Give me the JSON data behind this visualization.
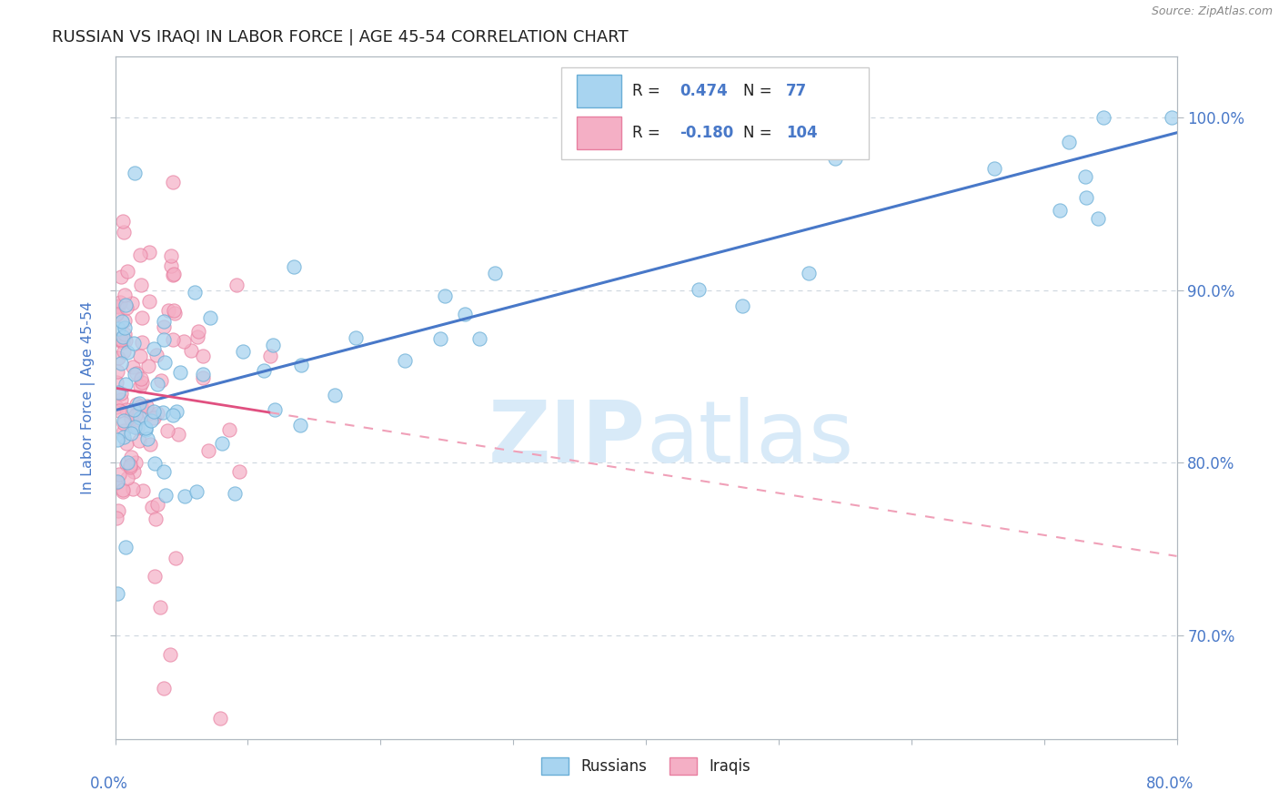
{
  "title": "RUSSIAN VS IRAQI IN LABOR FORCE | AGE 45-54 CORRELATION CHART",
  "source": "Source: ZipAtlas.com",
  "ylabel": "In Labor Force | Age 45-54",
  "xlim": [
    0.0,
    80.0
  ],
  "ylim": [
    64.0,
    103.5
  ],
  "yticks": [
    70,
    80,
    90,
    100
  ],
  "yticklabels": [
    "70.0%",
    "80.0%",
    "90.0%",
    "100.0%"
  ],
  "watermark_zip": "ZIP",
  "watermark_atlas": "atlas",
  "russian_color": "#a8d4f0",
  "iraqi_color": "#f4afc5",
  "russian_edge_color": "#6aaed6",
  "iraqi_edge_color": "#e87fa0",
  "russian_trend_color": "#4878c8",
  "iraqi_trend_solid_color": "#e05080",
  "iraqi_trend_dash_color": "#f0a0b8",
  "title_color": "#222222",
  "axis_label_color": "#4878c8",
  "watermark_color": "#d8eaf8",
  "source_color": "#888888",
  "legend_text_color": "#222222",
  "legend_r_color": "#4878c8",
  "grid_color": "#d0d8e0",
  "spine_color": "#b0b8c0"
}
